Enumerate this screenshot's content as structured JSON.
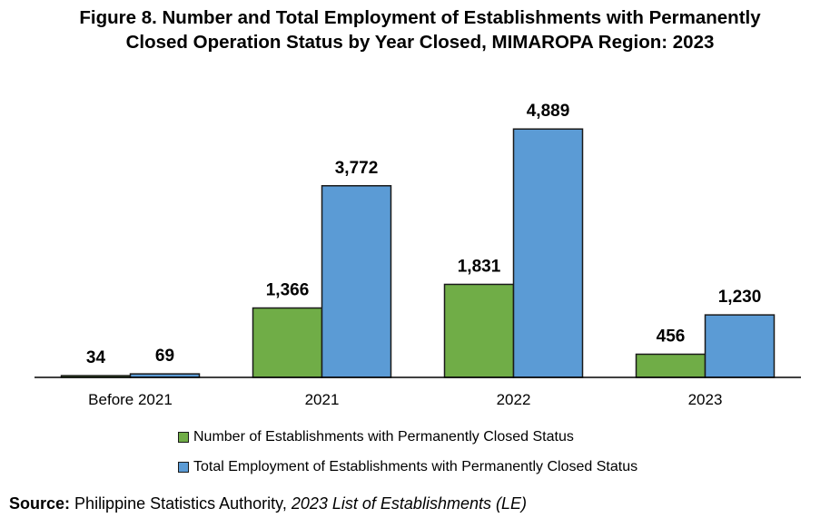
{
  "title": {
    "line1": "Figure 8. Number and Total Employment of Establishments with Permanently",
    "line2": "Closed Operation Status by Year Closed, MIMAROPA Region: 2023"
  },
  "chart_data": {
    "type": "bar",
    "title": "Figure 8. Number and Total Employment of Establishments with Permanently Closed Operation Status by Year Closed, MIMAROPA Region: 2023",
    "categories": [
      "Before 2021",
      "2021",
      "2022",
      "2023"
    ],
    "series": [
      {
        "name": "Number of Establishments with Permanently Closed Status",
        "values": [
          34,
          1366,
          1831,
          456
        ],
        "labels": [
          "34",
          "1,366",
          "1,831",
          "456"
        ],
        "color": "#70ad47"
      },
      {
        "name": "Total Employment of Establishments with Permanently Closed Status",
        "values": [
          69,
          3772,
          4889,
          1230
        ],
        "labels": [
          "69",
          "3,772",
          "4,889",
          "1,230"
        ],
        "color": "#5b9bd5"
      }
    ],
    "ylim": [
      0,
      5500
    ],
    "grid": false,
    "legend_position": "bottom"
  },
  "source": {
    "label": "Source:",
    "text": "Philippine Statistics Authority,",
    "title": "2023 List of Establishments (LE)"
  }
}
